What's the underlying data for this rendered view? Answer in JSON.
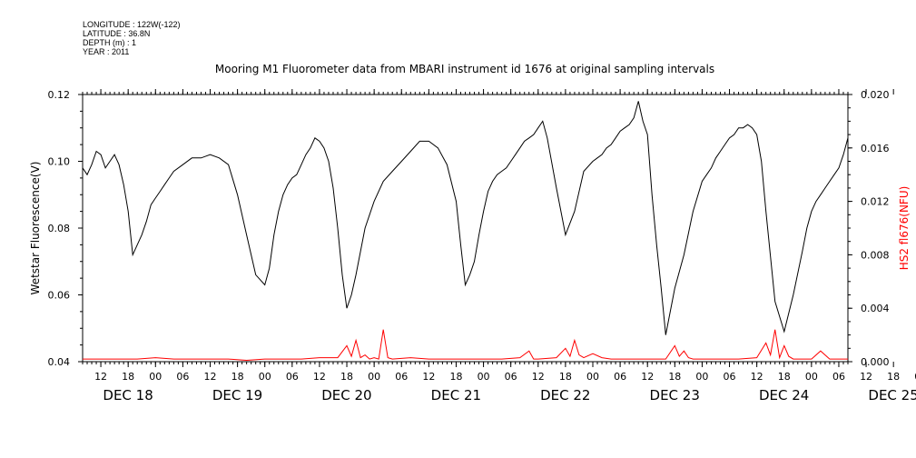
{
  "header": {
    "meta_lines": [
      "LONGITUDE : 122W(-122)",
      "LATITUDE : 36.8N",
      "DEPTH (m) : 1",
      "YEAR : 2011"
    ]
  },
  "chart_data": {
    "type": "line",
    "title": "Mooring M1 Fluorometer data from MBARI instrument id 1676 at original sampling intervals",
    "x_hour_ticks": [
      "12",
      "18",
      "00",
      "06",
      "12",
      "18",
      "00",
      "06",
      "12",
      "18",
      "00",
      "06",
      "12",
      "18",
      "00",
      "06",
      "12",
      "18",
      "00",
      "06",
      "12",
      "18",
      "00",
      "06",
      "12",
      "18",
      "00",
      "06",
      "12",
      "18",
      "00",
      "06"
    ],
    "x_day_labels": [
      "DEC 18",
      "DEC 19",
      "DEC 20",
      "DEC 21",
      "DEC 22",
      "DEC 23",
      "DEC 24",
      "DEC 25"
    ],
    "x_range_hours": [
      8,
      176
    ],
    "y_left": {
      "label": "Wetstar Fluorescence(V)",
      "range": [
        0.04,
        0.12
      ],
      "ticks": [
        "0.04",
        "0.06",
        "0.08",
        "0.10",
        "0.12"
      ],
      "color": "#000000"
    },
    "y_right": {
      "label": "HS2 fl676(NFU)",
      "range": [
        0.0,
        0.02
      ],
      "ticks": [
        "0.000",
        "0.004",
        "0.008",
        "0.012",
        "0.016",
        "0.020"
      ],
      "color": "#ff0000"
    },
    "series": [
      {
        "name": "Wetstar Fluorescence(V)",
        "axis": "left",
        "color": "#000000",
        "x": [
          8,
          9,
          10,
          11,
          12,
          13,
          14,
          15,
          16,
          17,
          18,
          19,
          20,
          21,
          22,
          23,
          24,
          25,
          26,
          27,
          28,
          30,
          32,
          34,
          36,
          38,
          40,
          42,
          44,
          46,
          48,
          49,
          50,
          51,
          52,
          53,
          54,
          55,
          56,
          57,
          58,
          59,
          60,
          61,
          62,
          63,
          64,
          65,
          66,
          67,
          68,
          70,
          72,
          74,
          76,
          78,
          80,
          82,
          84,
          86,
          88,
          90,
          91,
          92,
          93,
          94,
          95,
          96,
          97,
          98,
          99,
          100,
          101,
          102,
          103,
          104,
          105,
          106,
          107,
          108,
          109,
          110,
          112,
          114,
          116,
          118,
          120,
          121,
          122,
          123,
          124,
          125,
          126,
          127,
          128,
          129,
          130,
          131,
          132,
          133,
          134,
          135,
          136,
          138,
          140,
          142,
          144,
          145,
          146,
          147,
          148,
          149,
          150,
          151,
          152,
          153,
          154,
          155,
          156,
          157,
          158,
          160,
          162,
          164,
          166,
          167,
          168,
          169,
          170,
          171,
          172,
          173,
          174,
          175,
          176
        ],
        "values": [
          0.098,
          0.096,
          0.099,
          0.103,
          0.102,
          0.098,
          0.1,
          0.102,
          0.099,
          0.093,
          0.085,
          0.072,
          0.075,
          0.078,
          0.082,
          0.087,
          0.089,
          0.091,
          0.093,
          0.095,
          0.097,
          0.099,
          0.101,
          0.101,
          0.102,
          0.101,
          0.099,
          0.09,
          0.078,
          0.066,
          0.063,
          0.068,
          0.078,
          0.085,
          0.09,
          0.093,
          0.095,
          0.096,
          0.099,
          0.102,
          0.104,
          0.107,
          0.106,
          0.104,
          0.1,
          0.092,
          0.08,
          0.066,
          0.056,
          0.06,
          0.066,
          0.08,
          0.088,
          0.094,
          0.097,
          0.1,
          0.103,
          0.106,
          0.106,
          0.104,
          0.099,
          0.088,
          0.075,
          0.063,
          0.066,
          0.07,
          0.078,
          0.085,
          0.091,
          0.094,
          0.096,
          0.097,
          0.098,
          0.1,
          0.102,
          0.104,
          0.106,
          0.107,
          0.108,
          0.11,
          0.112,
          0.107,
          0.092,
          0.078,
          0.085,
          0.097,
          0.1,
          0.101,
          0.102,
          0.104,
          0.105,
          0.107,
          0.109,
          0.11,
          0.111,
          0.113,
          0.118,
          0.112,
          0.108,
          0.09,
          0.075,
          0.062,
          0.048,
          0.062,
          0.072,
          0.085,
          0.094,
          0.096,
          0.098,
          0.101,
          0.103,
          0.105,
          0.107,
          0.108,
          0.11,
          0.11,
          0.111,
          0.11,
          0.108,
          0.1,
          0.085,
          0.058,
          0.049,
          0.06,
          0.073,
          0.08,
          0.085,
          0.088,
          0.09,
          0.092,
          0.094,
          0.096,
          0.098,
          0.102,
          0.107
        ]
      },
      {
        "name": "HS2 fl676(NFU)",
        "axis": "right",
        "color": "#ff0000",
        "x": [
          8,
          12,
          16,
          20,
          24,
          28,
          32,
          36,
          40,
          44,
          48,
          52,
          56,
          60,
          64,
          66,
          67,
          68,
          69,
          70,
          71,
          72,
          73,
          74,
          75,
          76,
          80,
          84,
          88,
          92,
          96,
          100,
          104,
          106,
          107,
          108,
          112,
          114,
          115,
          116,
          117,
          118,
          120,
          122,
          124,
          128,
          132,
          136,
          138,
          139,
          140,
          141,
          142,
          144,
          148,
          152,
          156,
          158,
          159,
          160,
          161,
          162,
          163,
          164,
          168,
          170,
          172,
          176
        ],
        "values": [
          0.0002,
          0.0002,
          0.0002,
          0.0002,
          0.0003,
          0.0002,
          0.0002,
          0.0002,
          0.0002,
          0.0001,
          0.0002,
          0.0002,
          0.0002,
          0.0003,
          0.0003,
          0.0012,
          0.0004,
          0.0016,
          0.0003,
          0.0005,
          0.0002,
          0.0003,
          0.0002,
          0.0024,
          0.0003,
          0.0002,
          0.0003,
          0.0002,
          0.0002,
          0.0002,
          0.0002,
          0.0002,
          0.0003,
          0.0008,
          0.0002,
          0.0002,
          0.0003,
          0.001,
          0.0004,
          0.0016,
          0.0005,
          0.0003,
          0.0006,
          0.0003,
          0.0002,
          0.0002,
          0.0002,
          0.0002,
          0.0012,
          0.0004,
          0.0008,
          0.0003,
          0.0002,
          0.0002,
          0.0002,
          0.0002,
          0.0003,
          0.0014,
          0.0005,
          0.0024,
          0.0003,
          0.0012,
          0.0004,
          0.0002,
          0.0002,
          0.0008,
          0.0002,
          0.0002
        ]
      }
    ],
    "grid": false,
    "legend": "none"
  }
}
